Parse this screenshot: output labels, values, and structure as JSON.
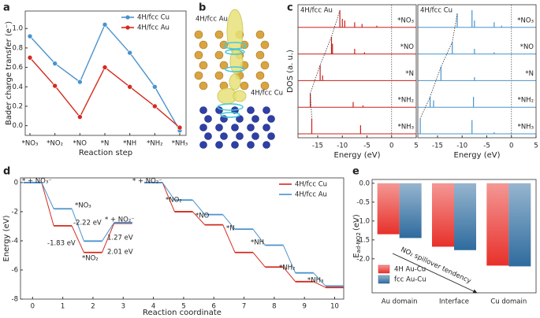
{
  "panel_labels": [
    "a",
    "b",
    "c",
    "d",
    "e"
  ],
  "structures": {
    "labels": [
      "4H/fcc Au",
      "4H/fcc Cu"
    ]
  },
  "chart_data": [
    {
      "type": "line",
      "categories": [
        "*NO₃",
        "*NO₂",
        "*NO",
        "*N",
        "*NH",
        "*NH₂",
        "*NH₃"
      ],
      "series": [
        {
          "name": "4H/fcc Cu",
          "color": "#4a93cc",
          "values": [
            0.92,
            0.64,
            0.45,
            1.04,
            0.75,
            0.4,
            -0.05
          ]
        },
        {
          "name": "4H/fcc Au",
          "color": "#d42a1e",
          "values": [
            0.7,
            0.41,
            0.09,
            0.6,
            0.4,
            0.2,
            -0.02
          ]
        }
      ],
      "xlabel": "Reaction step",
      "ylabel": "Bader charge transfer (e⁻)",
      "ylim": [
        -0.1,
        1.18
      ],
      "yticks": [
        {
          "value": 0,
          "label": "0.0"
        },
        0.2,
        0.4,
        0.6,
        0.8,
        {
          "value": 1,
          "label": "1.0"
        }
      ],
      "legend": "upper right"
    },
    {
      "type": "dos",
      "xlabel": "Energy (eV)",
      "ylabel": "DOS (a. u.)",
      "rows": [
        "*NO₃",
        "*NO",
        "*N",
        "*NH₂",
        "*NH₃"
      ],
      "xlim": [
        -19,
        5
      ],
      "xticks": [
        -15,
        -10,
        -5,
        0,
        5
      ],
      "ylim": [
        0,
        1
      ],
      "panels": [
        {
          "name": "4H/fcc Au",
          "color": "#c8201a",
          "rows": [
            {
              "x": [
                -10.5,
                -10,
                -9.5,
                -7.5,
                -6,
                -3
              ],
              "values": [
                1.0,
                0.5,
                0.4,
                0.3,
                0.2,
                0.1
              ]
            },
            {
              "x": [
                -12.2,
                -12,
                -7.5,
                -5.5
              ],
              "values": [
                1.0,
                0.6,
                0.3,
                0.1
              ]
            },
            {
              "x": [
                -14.5,
                -14
              ],
              "values": [
                0.9,
                0.3
              ]
            },
            {
              "x": [
                -16.5,
                -7.8,
                -5.8
              ],
              "values": [
                0.8,
                0.3,
                0.1
              ]
            },
            {
              "x": [
                -16.2,
                -6.3
              ],
              "values": [
                0.9,
                0.5
              ]
            }
          ]
        },
        {
          "name": "4H/fcc Cu",
          "color": "#4a93cc",
          "rows": [
            {
              "x": [
                -11,
                -8,
                -7.5,
                -3.5,
                -2
              ],
              "values": [
                0.8,
                1.0,
                0.4,
                0.3,
                0.1
              ]
            },
            {
              "x": [
                -12,
                -7.5,
                -3.5
              ],
              "values": [
                0.7,
                0.3,
                0.1
              ]
            },
            {
              "x": [
                -14.3,
                -7.5
              ],
              "values": [
                0.8,
                0.2
              ]
            },
            {
              "x": [
                -16.5,
                -15.8,
                -7.7
              ],
              "values": [
                0.6,
                0.4,
                0.6
              ]
            },
            {
              "x": [
                -18.5,
                -8,
                -3.5
              ],
              "values": [
                0.9,
                0.8,
                0.1
              ]
            }
          ]
        }
      ]
    },
    {
      "type": "energy-diagram",
      "xlabel": "Reaction coordinate",
      "ylabel": "Energy (eV)",
      "xlim": [
        -0.4,
        10.3
      ],
      "xticks": [
        0,
        1,
        2,
        3,
        4,
        5,
        6,
        7,
        8,
        9,
        10
      ],
      "ylim": [
        -8,
        0.32
      ],
      "yticks": [
        0,
        -2,
        -4,
        -6,
        -8
      ],
      "series": [
        {
          "name": "4H/fcc Cu",
          "color": "#d42a1e",
          "segments": [
            {
              "x": [
                0,
                1,
                2,
                3
              ],
              "values": [
                0,
                -2.97,
                -4.8,
                -2.79
              ]
            },
            {
              "x": [
                4,
                5,
                6,
                7,
                8,
                9,
                10
              ],
              "values": [
                0,
                -2.0,
                -2.9,
                -4.8,
                -5.8,
                -6.8,
                -7.2
              ]
            }
          ]
        },
        {
          "name": "4H/fcc Au",
          "color": "#4a93cc",
          "segments": [
            {
              "x": [
                0,
                1,
                2,
                3
              ],
              "values": [
                0,
                -1.8,
                -4.02,
                -2.75
              ]
            },
            {
              "x": [
                4,
                5,
                6,
                7,
                8,
                9,
                10
              ],
              "values": [
                0,
                -1.2,
                -2.2,
                -3.2,
                -4.3,
                -6.2,
                -7.1
              ]
            }
          ]
        }
      ],
      "annotations": [
        "* + NO₃⁻",
        "*NO₃",
        "*NO₂",
        "* + NO₂⁻",
        "-2.22 eV",
        "1.27 eV",
        "-1.83 eV",
        "2.01 eV",
        "* + NO₂⁻",
        "*NO₂",
        "*NO",
        "*N",
        "*NH",
        "*NH₂",
        "*NH₃"
      ],
      "legend": "upper right"
    },
    {
      "type": "bar",
      "categories": [
        "Au domain",
        "Interface",
        "Cu domain"
      ],
      "series": [
        {
          "name": "4H Au-Cu",
          "color": "#e8302a",
          "values": [
            -1.35,
            -1.68,
            -2.18
          ]
        },
        {
          "name": "fcc Au-Cu",
          "color": "#2e6b9e",
          "values": [
            -1.45,
            -1.77,
            -2.2
          ]
        }
      ],
      "ylabel": "E",
      "ylabel_sub": "ad-NO2",
      "ylabel_unit": "(eV)",
      "ylim": [
        -2.9,
        0.1
      ],
      "yticks": [
        {
          "value": 0,
          "label": "0.0"
        },
        -0.5,
        {
          "value": -1,
          "label": "-1.0"
        },
        -1.5,
        {
          "value": -2,
          "label": "-2.0"
        }
      ],
      "annotation": "NO₂ spillover tendency",
      "legend": "lower left"
    }
  ]
}
